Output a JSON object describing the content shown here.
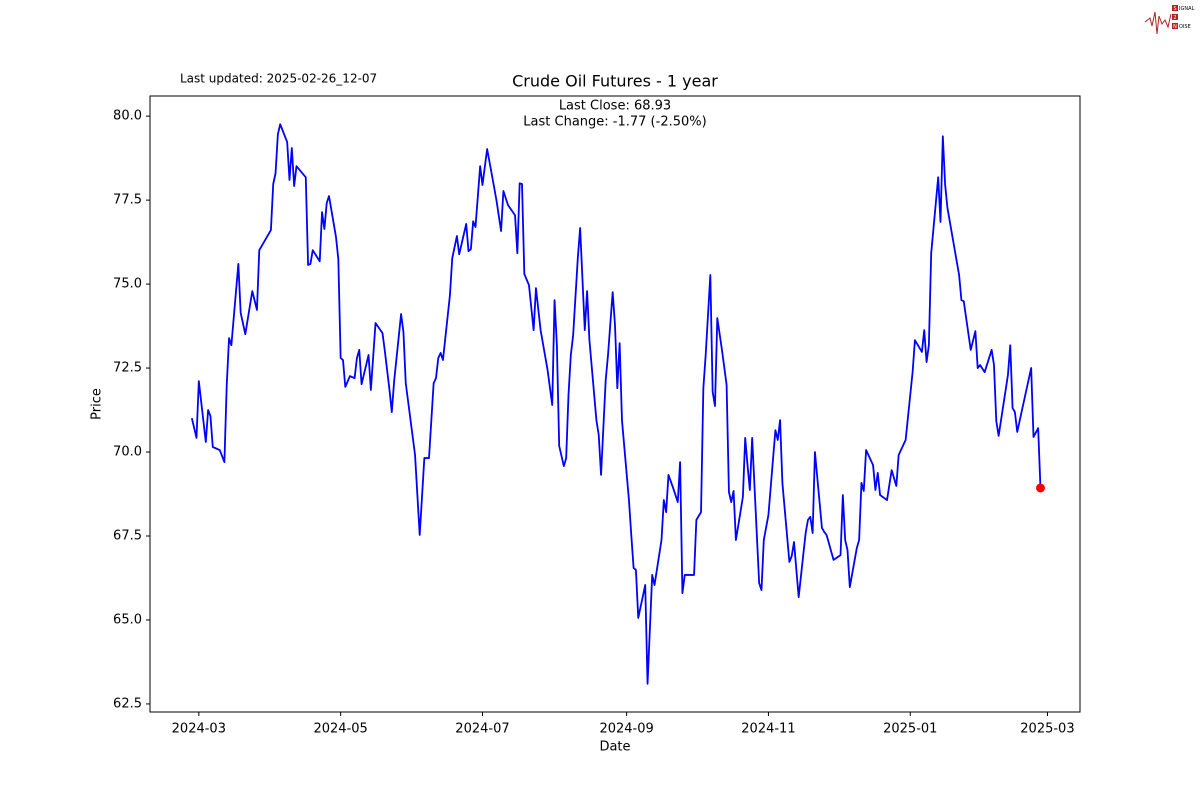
{
  "chart_data": {
    "type": "line",
    "title": "Crude Oil Futures - 1 year",
    "updated": "Last updated: 2025-02-26_12-07",
    "annotations": [
      "Last Close: 68.93",
      "Last Change: -1.77 (-2.50%)"
    ],
    "x_label": "Date",
    "y_label": "Price",
    "color": "#0000ff",
    "marker_color": "#ff0000",
    "xlim": [
      "2024-02-09",
      "2025-03-15"
    ],
    "ylim": [
      62.26,
      80.6
    ],
    "xticks": [
      {
        "value": "2024-03-01",
        "label": "2024-03"
      },
      {
        "value": "2024-05-01",
        "label": "2024-05"
      },
      {
        "value": "2024-07-01",
        "label": "2024-07"
      },
      {
        "value": "2024-09-01",
        "label": "2024-09"
      },
      {
        "value": "2024-11-01",
        "label": "2024-11"
      },
      {
        "value": "2025-01-01",
        "label": "2025-01"
      },
      {
        "value": "2025-03-01",
        "label": "2025-03"
      }
    ],
    "yticks": [
      62.5,
      {
        "value": 65,
        "label": "65.0"
      },
      67.5,
      {
        "value": 70,
        "label": "70.0"
      },
      72.5,
      {
        "value": 75,
        "label": "75.0"
      },
      77.5,
      {
        "value": 80,
        "label": "80.0"
      }
    ],
    "x": [
      "2024-02-27",
      "2024-02-29",
      "2024-03-01",
      "2024-03-04",
      "2024-03-05",
      "2024-03-06",
      "2024-03-07",
      "2024-03-10",
      "2024-03-12",
      "2024-03-13",
      "2024-03-14",
      "2024-03-15",
      "2024-03-18",
      "2024-03-19",
      "2024-03-21",
      "2024-03-24",
      "2024-03-26",
      "2024-03-27",
      "2024-04-01",
      "2024-04-02",
      "2024-04-03",
      "2024-04-04",
      "2024-04-05",
      "2024-04-08",
      "2024-04-09",
      "2024-04-10",
      "2024-04-11",
      "2024-04-12",
      "2024-04-16",
      "2024-04-17",
      "2024-04-18",
      "2024-04-19",
      "2024-04-22",
      "2024-04-23",
      "2024-04-24",
      "2024-04-25",
      "2024-04-26",
      "2024-04-29",
      "2024-04-30",
      "2024-05-01",
      "2024-05-02",
      "2024-05-03",
      "2024-05-05",
      "2024-05-07",
      "2024-05-08",
      "2024-05-09",
      "2024-05-10",
      "2024-05-13",
      "2024-05-14",
      "2024-05-16",
      "2024-05-19",
      "2024-05-20",
      "2024-05-22",
      "2024-05-23",
      "2024-05-24",
      "2024-05-27",
      "2024-05-28",
      "2024-05-29",
      "2024-06-02",
      "2024-06-04",
      "2024-06-06",
      "2024-06-08",
      "2024-06-10",
      "2024-06-11",
      "2024-06-12",
      "2024-06-13",
      "2024-06-14",
      "2024-06-17",
      "2024-06-18",
      "2024-06-20",
      "2024-06-21",
      "2024-06-24",
      "2024-06-25",
      "2024-06-26",
      "2024-06-27",
      "2024-06-28",
      "2024-06-30",
      "2024-07-01",
      "2024-07-03",
      "2024-07-05",
      "2024-07-07",
      "2024-07-09",
      "2024-07-10",
      "2024-07-12",
      "2024-07-15",
      "2024-07-16",
      "2024-07-17",
      "2024-07-18",
      "2024-07-19",
      "2024-07-21",
      "2024-07-23",
      "2024-07-24",
      "2024-07-26",
      "2024-07-29",
      "2024-07-31",
      "2024-08-01",
      "2024-08-02",
      "2024-08-03",
      "2024-08-05",
      "2024-08-06",
      "2024-08-07",
      "2024-08-08",
      "2024-08-09",
      "2024-08-11",
      "2024-08-12",
      "2024-08-14",
      "2024-08-15",
      "2024-08-16",
      "2024-08-19",
      "2024-08-20",
      "2024-08-21",
      "2024-08-23",
      "2024-08-24",
      "2024-08-26",
      "2024-08-27",
      "2024-08-28",
      "2024-08-29",
      "2024-08-30",
      "2024-09-02",
      "2024-09-03",
      "2024-09-04",
      "2024-09-05",
      "2024-09-06",
      "2024-09-09",
      "2024-09-10",
      "2024-09-12",
      "2024-09-13",
      "2024-09-16",
      "2024-09-17",
      "2024-09-18",
      "2024-09-19",
      "2024-09-21",
      "2024-09-23",
      "2024-09-24",
      "2024-09-25",
      "2024-09-26",
      "2024-09-30",
      "2024-10-01",
      "2024-10-03",
      "2024-10-04",
      "2024-10-05",
      "2024-10-06",
      "2024-10-07",
      "2024-10-08",
      "2024-10-09",
      "2024-10-10",
      "2024-10-12",
      "2024-10-14",
      "2024-10-15",
      "2024-10-16",
      "2024-10-17",
      "2024-10-18",
      "2024-10-21",
      "2024-10-22",
      "2024-10-23",
      "2024-10-24",
      "2024-10-25",
      "2024-10-28",
      "2024-10-29",
      "2024-10-30",
      "2024-11-01",
      "2024-11-03",
      "2024-11-04",
      "2024-11-05",
      "2024-11-06",
      "2024-11-07",
      "2024-11-10",
      "2024-11-11",
      "2024-11-12",
      "2024-11-14",
      "2024-11-17",
      "2024-11-18",
      "2024-11-19",
      "2024-11-20",
      "2024-11-21",
      "2024-11-24",
      "2024-11-25",
      "2024-11-26",
      "2024-11-29",
      "2024-12-02",
      "2024-12-03",
      "2024-12-04",
      "2024-12-05",
      "2024-12-06",
      "2024-12-09",
      "2024-12-10",
      "2024-12-11",
      "2024-12-12",
      "2024-12-13",
      "2024-12-16",
      "2024-12-17",
      "2024-12-18",
      "2024-12-19",
      "2024-12-22",
      "2024-12-24",
      "2024-12-26",
      "2024-12-27",
      "2024-12-30",
      "2025-01-02",
      "2025-01-03",
      "2025-01-06",
      "2025-01-07",
      "2025-01-08",
      "2025-01-09",
      "2025-01-10",
      "2025-01-13",
      "2025-01-14",
      "2025-01-15",
      "2025-01-16",
      "2025-01-17",
      "2025-01-22",
      "2025-01-23",
      "2025-01-24",
      "2025-01-27",
      "2025-01-29",
      "2025-01-30",
      "2025-01-31",
      "2025-02-02",
      "2025-02-05",
      "2025-02-06",
      "2025-02-07",
      "2025-02-08",
      "2025-02-12",
      "2025-02-13",
      "2025-02-14",
      "2025-02-15",
      "2025-02-16",
      "2025-02-19",
      "2025-02-22",
      "2025-02-23",
      "2025-02-25",
      "2025-02-26"
    ],
    "values": [
      71.01,
      70.42,
      72.11,
      70.3,
      71.25,
      71.07,
      70.15,
      70.06,
      69.7,
      72.0,
      73.39,
      73.18,
      75.6,
      74.14,
      73.51,
      74.79,
      74.23,
      76.01,
      76.61,
      77.98,
      78.3,
      79.46,
      79.76,
      79.23,
      78.1,
      79.05,
      77.92,
      78.51,
      78.18,
      75.57,
      75.6,
      76.01,
      75.68,
      77.14,
      76.64,
      77.41,
      77.62,
      76.4,
      75.74,
      72.8,
      72.74,
      71.94,
      72.26,
      72.2,
      72.8,
      73.04,
      72.02,
      72.89,
      71.85,
      73.84,
      73.54,
      73.01,
      71.85,
      71.19,
      72.11,
      74.11,
      73.57,
      72.05,
      69.91,
      67.53,
      69.82,
      69.82,
      72.05,
      72.2,
      72.8,
      72.95,
      72.74,
      74.67,
      75.77,
      76.43,
      75.89,
      76.79,
      75.98,
      76.04,
      76.87,
      76.7,
      78.51,
      77.95,
      79.02,
      78.27,
      77.5,
      76.58,
      77.77,
      77.35,
      77.05,
      75.92,
      78.0,
      77.98,
      75.3,
      74.97,
      73.63,
      74.88,
      73.63,
      72.44,
      71.4,
      74.52,
      73.18,
      70.18,
      69.58,
      69.82,
      71.7,
      72.89,
      73.48,
      75.77,
      76.67,
      73.63,
      74.79,
      73.33,
      70.95,
      70.51,
      69.32,
      72.14,
      72.89,
      74.76,
      73.78,
      71.9,
      73.24,
      70.95,
      68.57,
      67.53,
      66.55,
      66.49,
      65.06,
      66.04,
      63.1,
      66.34,
      66.04,
      67.38,
      68.57,
      68.21,
      69.32,
      68.93,
      68.51,
      69.7,
      65.8,
      66.34,
      66.34,
      67.98,
      68.21,
      71.9,
      72.89,
      74.08,
      75.27,
      71.79,
      71.37,
      73.99,
      73.04,
      72.0,
      68.81,
      68.51,
      68.84,
      67.38,
      68.66,
      70.42,
      69.61,
      68.87,
      70.42,
      66.1,
      65.89,
      67.38,
      68.13,
      69.82,
      70.65,
      70.36,
      70.95,
      69.08,
      66.73,
      66.9,
      67.32,
      65.68,
      67.59,
      67.98,
      68.07,
      67.59,
      70.0,
      67.74,
      67.62,
      67.53,
      66.79,
      66.93,
      68.72,
      67.38,
      67.08,
      65.98,
      67.14,
      67.38,
      69.08,
      68.84,
      70.06,
      69.61,
      68.87,
      69.38,
      68.72,
      68.57,
      69.46,
      68.99,
      69.91,
      70.36,
      72.38,
      73.33,
      72.98,
      73.63,
      72.68,
      73.18,
      75.92,
      78.18,
      76.85,
      79.4,
      77.95,
      77.26,
      75.27,
      74.52,
      74.49,
      73.04,
      73.6,
      72.5,
      72.59,
      72.38,
      73.04,
      72.59,
      70.92,
      70.48,
      72.29,
      73.18,
      71.31,
      71.19,
      70.6,
      71.55,
      72.5,
      70.45,
      70.71,
      68.93
    ]
  },
  "logo": [
    "S",
    "IGNAL",
    "2",
    "N",
    "OISE"
  ]
}
